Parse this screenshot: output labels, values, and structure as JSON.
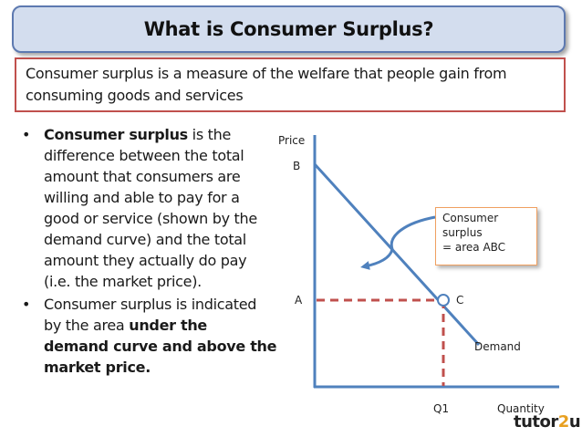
{
  "title": "What is Consumer Surplus?",
  "definition": {
    "line1": "Consumer surplus is a measure of the welfare that people gain from",
    "line2": "consuming goods and services"
  },
  "bullets": [
    {
      "bold": "Consumer surplus",
      "lines": [
        " is the",
        "difference between the total",
        "amount that consumers are",
        "willing and able to pay for a",
        "good or service (shown by the",
        "demand curve) and the total",
        "amount they actually do pay",
        "(i.e. the market price)."
      ]
    },
    {
      "line1": "Consumer surplus is indicated",
      "line2_pre": "by the area ",
      "line2_bold": "under the",
      "line3_bold": "demand curve and above the",
      "line4_bold": "market price."
    }
  ],
  "diagram": {
    "y_axis_label": "Price",
    "x_axis_label": "Quantity",
    "point_b": "B",
    "point_a": "A",
    "point_c": "C",
    "q_label": "Q1",
    "curve_label": "Demand",
    "callout": {
      "line1": "Consumer",
      "line2": "surplus",
      "line3": "= area ABC"
    },
    "colors": {
      "axis": "#4f81bd",
      "demand": "#4f81bd",
      "dashed": "#c0504d",
      "point_fill": "#ffffff"
    }
  },
  "logo": {
    "pre": "tutor",
    "accent": "2",
    "post": "u"
  }
}
